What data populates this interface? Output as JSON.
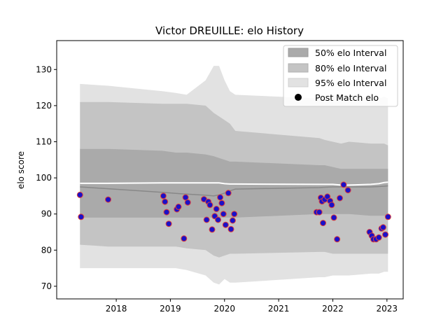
{
  "chart_data": {
    "type": "scatter",
    "title": "Victor DREUILLE: elo History",
    "xlabel": "",
    "ylabel": "elo score",
    "xlim": [
      2016.9,
      2023.3
    ],
    "ylim": [
      66.5,
      138.0
    ],
    "x_ticks": [
      2018,
      2019,
      2020,
      2021,
      2022,
      2023
    ],
    "y_ticks": [
      70,
      80,
      90,
      100,
      110,
      120,
      130
    ],
    "grid": false,
    "legend": {
      "placement": "top-right",
      "entries": [
        "50% elo Interval",
        "80% elo Interval",
        "95% elo Interval",
        "Post Match elo"
      ]
    },
    "colors": {
      "band50": "#aaaaaa",
      "band80": "#c4c4c4",
      "band95": "#e2e2e2",
      "marker_face": "#1a10c8",
      "marker_edge": "#e0403a",
      "mean_line": "#ffffff",
      "series_line": "#888888"
    },
    "bands": {
      "x": [
        2017.33,
        2017.85,
        2018.85,
        2019.1,
        2019.3,
        2019.65,
        2019.8,
        2019.9,
        2020.0,
        2020.1,
        2020.2,
        2021.75,
        2021.85,
        2022.0,
        2022.15,
        2022.3,
        2022.7,
        2022.85,
        2022.95,
        2023.02
      ],
      "p95_upper": [
        126,
        125.5,
        124,
        123.5,
        123,
        127,
        131,
        131,
        127,
        124,
        123,
        122,
        122,
        123,
        122.5,
        122.5,
        122,
        122,
        122.5,
        122
      ],
      "p80_upper": [
        121,
        121,
        120.5,
        120.5,
        120.5,
        120,
        118,
        117,
        116,
        115,
        113,
        111,
        110.5,
        110,
        109.5,
        110,
        109.5,
        109.5,
        109.5,
        109
      ],
      "p50_upper": [
        108,
        108,
        107.5,
        107,
        107,
        106.5,
        106,
        105.5,
        105,
        104.5,
        104.5,
        103.5,
        103.5,
        103,
        102.5,
        102.5,
        102.5,
        102.5,
        102.5,
        102.5
      ],
      "p50_lower": [
        89,
        89,
        89,
        89,
        89,
        89,
        89,
        89,
        89,
        89,
        89,
        90,
        90,
        90,
        90,
        90,
        89.5,
        89.5,
        89.5,
        89.5
      ],
      "p80_lower": [
        81.5,
        81,
        81,
        81,
        80.5,
        80,
        78.5,
        78,
        78.5,
        79,
        79,
        79.5,
        79.5,
        79,
        79,
        79,
        79,
        79,
        79,
        79
      ],
      "p95_lower": [
        75,
        75,
        75,
        75,
        74.5,
        73,
        71,
        70.5,
        72,
        71,
        71,
        72.5,
        72.5,
        73,
        73,
        73,
        73.5,
        73.5,
        74,
        74
      ],
      "mean": [
        98.5,
        98.5,
        98.6,
        98.6,
        98.6,
        98.6,
        98.6,
        98.6,
        98.4,
        98.3,
        98.3,
        98.2,
        98.2,
        98.2,
        98.0,
        98.0,
        98.2,
        98.4,
        98.7,
        98.8
      ],
      "series": [
        97.5,
        97.0,
        96.0,
        95.7,
        95.5,
        95.2,
        95.0,
        95.3,
        95.8,
        96.4,
        96.9,
        97.3,
        97.4,
        97.5,
        97.5,
        97.5,
        97.5,
        97.6,
        97.7,
        97.8
      ]
    },
    "points": {
      "x": [
        2017.33,
        2017.35,
        2017.85,
        2018.87,
        2018.9,
        2018.93,
        2018.97,
        2019.12,
        2019.15,
        2019.25,
        2019.28,
        2019.32,
        2019.62,
        2019.67,
        2019.7,
        2019.73,
        2019.77,
        2019.82,
        2019.85,
        2019.88,
        2019.92,
        2019.95,
        2019.98,
        2020.02,
        2020.07,
        2020.12,
        2020.15,
        2020.18,
        2021.7,
        2021.75,
        2021.78,
        2021.8,
        2021.82,
        2021.85,
        2021.9,
        2021.95,
        2021.98,
        2022.02,
        2022.08,
        2022.13,
        2022.2,
        2022.28,
        2022.68,
        2022.72,
        2022.75,
        2022.8,
        2022.85,
        2022.9,
        2022.93,
        2022.97,
        2023.02
      ],
      "y": [
        95.3,
        89.2,
        94.0,
        95.0,
        93.4,
        90.5,
        87.3,
        91.3,
        92.0,
        83.2,
        94.6,
        93.2,
        94.1,
        88.4,
        93.4,
        92.5,
        85.7,
        89.4,
        91.4,
        88.4,
        94.6,
        93.0,
        90.0,
        87.0,
        95.8,
        85.8,
        88.2,
        90.0,
        90.5,
        90.5,
        94.5,
        93.5,
        87.5,
        94.0,
        94.8,
        93.6,
        92.5,
        89.0,
        83.0,
        94.4,
        98.1,
        96.6,
        85.0,
        84.0,
        83.0,
        83.0,
        83.5,
        86.0,
        86.3,
        84.3,
        89.2
      ]
    }
  }
}
